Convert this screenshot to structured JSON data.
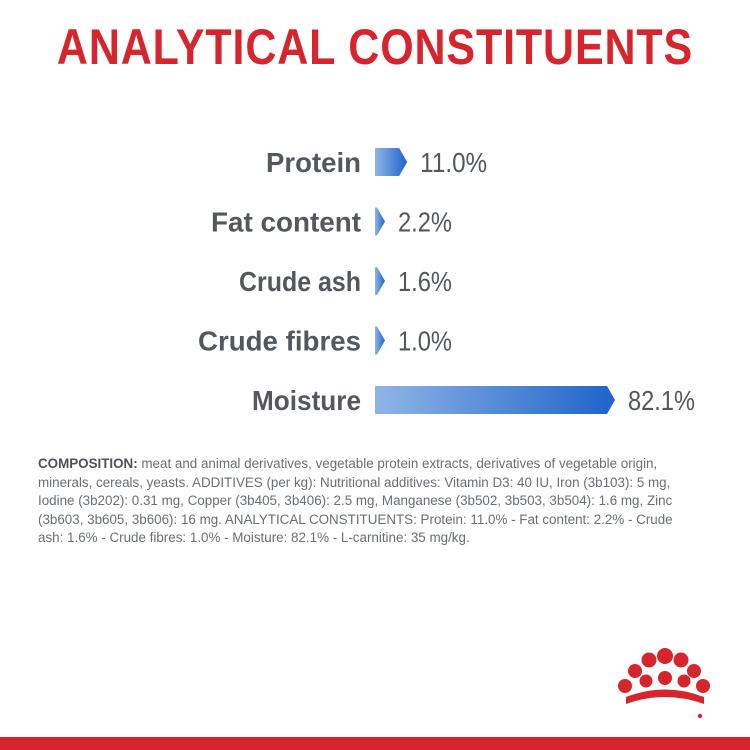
{
  "title": "ANALYTICAL CONSTITUENTS",
  "chart_data": {
    "type": "bar",
    "orientation": "horizontal",
    "categories": [
      "Protein",
      "Fat content",
      "Crude ash",
      "Crude fibres",
      "Moisture"
    ],
    "values": [
      11.0,
      2.2,
      1.6,
      1.0,
      82.1
    ],
    "value_labels": [
      "11.0%",
      "2.2%",
      "1.6%",
      "1.0%",
      "82.1%"
    ],
    "unit": "%",
    "xlim": [
      0,
      82.1
    ],
    "grid": false,
    "legend": "none",
    "bar_color_start": "#8fb5e6",
    "bar_color_end": "#1f63c9"
  },
  "composition": {
    "label": "COMPOSITION:",
    "text": " meat and animal derivatives, vegetable protein extracts, derivatives of vegetable origin, minerals, cereals, yeasts. ADDITIVES (per kg): Nutritional additives: Vitamin D3: 40 IU, Iron (3b103): 5 mg, Iodine (3b202): 0.31 mg, Copper (3b405, 3b406): 2.5 mg, Manganese (3b502, 3b503, 3b504): 1.6 mg, Zinc (3b603, 3b605, 3b606): 16 mg. ANALYTICAL CONSTITUENTS: Protein: 11.0% - Fat content: 2.2% - Crude ash: 1.6% - Crude fibres: 1.0% - Moisture: 82.1% - L-carnitine: 35 mg/kg."
  },
  "logo": {
    "icon": "crown-icon",
    "color": "#d6252c"
  },
  "colors": {
    "accent": "#d6252c",
    "text": "#53585e"
  }
}
